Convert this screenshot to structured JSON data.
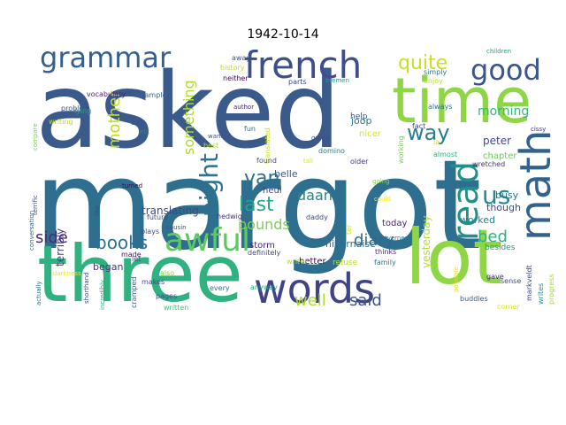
{
  "title": "1942-10-14",
  "words": [
    {
      "text": "asked",
      "color": "#3b5a8c"
    },
    {
      "text": "margot",
      "color": "#2e6e8e"
    },
    {
      "text": "three",
      "color": "#2fb27f"
    },
    {
      "text": "time",
      "color": "#8fd645"
    },
    {
      "text": "lot",
      "color": "#8fd645"
    },
    {
      "text": "words",
      "color": "#404388"
    },
    {
      "text": "french",
      "color": "#3d4f8a"
    },
    {
      "text": "awful",
      "color": "#5ec962"
    },
    {
      "text": "grammar",
      "color": "#35608d"
    },
    {
      "text": "good",
      "color": "#3a548c"
    },
    {
      "text": "math",
      "color": "#33638d"
    },
    {
      "text": "read",
      "color": "#21908d"
    },
    {
      "text": "us",
      "color": "#238a8d"
    },
    {
      "text": "quite",
      "color": "#c8e020"
    },
    {
      "text": "way",
      "color": "#277f8e"
    },
    {
      "text": "night",
      "color": "#2c728e"
    },
    {
      "text": "mother",
      "color": "#c2df23"
    },
    {
      "text": "something",
      "color": "#addc30"
    },
    {
      "text": "books",
      "color": "#2c728e"
    },
    {
      "text": "side",
      "color": "#482878"
    },
    {
      "text": "van",
      "color": "#2d708e"
    },
    {
      "text": "last",
      "color": "#22a884"
    },
    {
      "text": "pounds",
      "color": "#7ad151"
    },
    {
      "text": "diary",
      "color": "#31688e"
    },
    {
      "text": "bed",
      "color": "#2db27d"
    },
    {
      "text": "well",
      "color": "#addc30"
    },
    {
      "text": "said",
      "color": "#3b528b"
    },
    {
      "text": "daan",
      "color": "#25858e"
    },
    {
      "text": "morning",
      "color": "#35b779"
    },
    {
      "text": "peter",
      "color": "#3e4a89"
    },
    {
      "text": "chapter",
      "color": "#6ece58"
    },
    {
      "text": "busy",
      "color": "#2a788e"
    },
    {
      "text": "translating",
      "color": "#3f4788"
    },
    {
      "text": "terribly",
      "color": "#433e85"
    },
    {
      "text": "began",
      "color": "#46337e"
    },
    {
      "text": "yesterday",
      "color": "#b5de2b"
    },
    {
      "text": "worked",
      "color": "#26828e"
    },
    {
      "text": "today",
      "color": "#481f70"
    },
    {
      "text": "though",
      "color": "#3e4989"
    },
    {
      "text": "nivernaise",
      "color": "#2e6f8e"
    },
    {
      "text": "storm",
      "color": "#482475"
    },
    {
      "text": "heul",
      "color": "#433e85"
    },
    {
      "text": "belle",
      "color": "#3b528b"
    },
    {
      "text": "joop",
      "color": "#29798e"
    },
    {
      "text": "help",
      "color": "#3b528b"
    },
    {
      "text": "nicer",
      "color": "#dde318"
    },
    {
      "text": "working",
      "color": "#7ad151"
    },
    {
      "text": "fact",
      "color": "#3f4889"
    },
    {
      "text": "always",
      "color": "#2c718e"
    },
    {
      "text": "la",
      "color": "#d2e21b"
    },
    {
      "text": "almost",
      "color": "#29af7f"
    },
    {
      "text": "wretched",
      "color": "#46327e"
    },
    {
      "text": "besides",
      "color": "#1f998a"
    },
    {
      "text": "better",
      "color": "#440154"
    },
    {
      "text": "refuse",
      "color": "#bddf26"
    },
    {
      "text": "thinks",
      "color": "#472d7b"
    },
    {
      "text": "family",
      "color": "#2c728e"
    },
    {
      "text": "writer",
      "color": "#b8de29"
    },
    {
      "text": "gave",
      "color": "#472c7a"
    },
    {
      "text": "sense",
      "color": "#3e4a89"
    },
    {
      "text": "writes",
      "color": "#21918c"
    },
    {
      "text": "progress",
      "color": "#a5db36"
    },
    {
      "text": "markveldt",
      "color": "#3e4989"
    },
    {
      "text": "buddies",
      "color": "#38598c"
    },
    {
      "text": "corner",
      "color": "#e5e419"
    },
    {
      "text": "possible",
      "color": "#e7e419"
    },
    {
      "text": "governess",
      "color": "#2c738e"
    },
    {
      "text": "anyway",
      "color": "#22a785"
    },
    {
      "text": "every",
      "color": "#2f6c8e"
    },
    {
      "text": "pages",
      "color": "#3d4d8a"
    },
    {
      "text": "written",
      "color": "#44bf70"
    },
    {
      "text": "makes",
      "color": "#404688"
    },
    {
      "text": "also",
      "color": "#8bd646"
    },
    {
      "text": "let",
      "color": "#3f4889"
    },
    {
      "text": "made",
      "color": "#481668"
    },
    {
      "text": "cramped",
      "color": "#355e8d"
    },
    {
      "text": "incredibly",
      "color": "#29af7f"
    },
    {
      "text": "shorthand",
      "color": "#3e4989"
    },
    {
      "text": "actually",
      "color": "#2a768e"
    },
    {
      "text": "conversation",
      "color": "#31668e"
    },
    {
      "text": "terrific",
      "color": "#3f4788"
    },
    {
      "text": "compare",
      "color": "#75d054"
    },
    {
      "text": "writing",
      "color": "#c0df25"
    },
    {
      "text": "problem",
      "color": "#3b528b"
    },
    {
      "text": "vocabulary",
      "color": "#481f70"
    },
    {
      "text": "lying",
      "color": "#22a785"
    },
    {
      "text": "day",
      "color": "#3b528b"
    },
    {
      "text": "etc",
      "color": "#24878e"
    },
    {
      "text": "example",
      "color": "#31678e"
    },
    {
      "text": "history",
      "color": "#bddf26"
    },
    {
      "text": "neither",
      "color": "#440154"
    },
    {
      "text": "away",
      "color": "#3b528b"
    },
    {
      "text": "author",
      "color": "#482173"
    },
    {
      "text": "bremen",
      "color": "#1f9e89"
    },
    {
      "text": "parts",
      "color": "#3e4989"
    },
    {
      "text": "simply",
      "color": "#2a788e"
    },
    {
      "text": "enjoy",
      "color": "#c2df23"
    },
    {
      "text": "children",
      "color": "#1fa187"
    },
    {
      "text": "cissy",
      "color": "#46327e"
    },
    {
      "text": "translated",
      "color": "#d0e11c"
    },
    {
      "text": "found",
      "color": "#3b528b"
    },
    {
      "text": "fun",
      "color": "#2c728e"
    },
    {
      "text": "green",
      "color": "#3e4989"
    },
    {
      "text": "domino",
      "color": "#2a788e"
    },
    {
      "text": "ter",
      "color": "#cde11d"
    },
    {
      "text": "tall",
      "color": "#dde318"
    },
    {
      "text": "older",
      "color": "#46337e"
    },
    {
      "text": "could",
      "color": "#fde725"
    },
    {
      "text": "going",
      "color": "#7fd34e"
    },
    {
      "text": "daddy",
      "color": "#3e4989"
    },
    {
      "text": "hedwig",
      "color": "#46327e"
    },
    {
      "text": "wanted",
      "color": "#3b528b"
    },
    {
      "text": "best",
      "color": "#addc30"
    },
    {
      "text": "future",
      "color": "#3e4989"
    },
    {
      "text": "plays",
      "color": "#3b528b"
    },
    {
      "text": "turned",
      "color": "#440154"
    },
    {
      "text": "like",
      "color": "#3e4a89"
    },
    {
      "text": "definitely",
      "color": "#3e4989"
    },
    {
      "text": "cousin",
      "color": "#3b528b"
    },
    {
      "text": "darkness",
      "color": "#f1e51d"
    },
    {
      "text": "sky",
      "color": "#dde318"
    }
  ]
}
